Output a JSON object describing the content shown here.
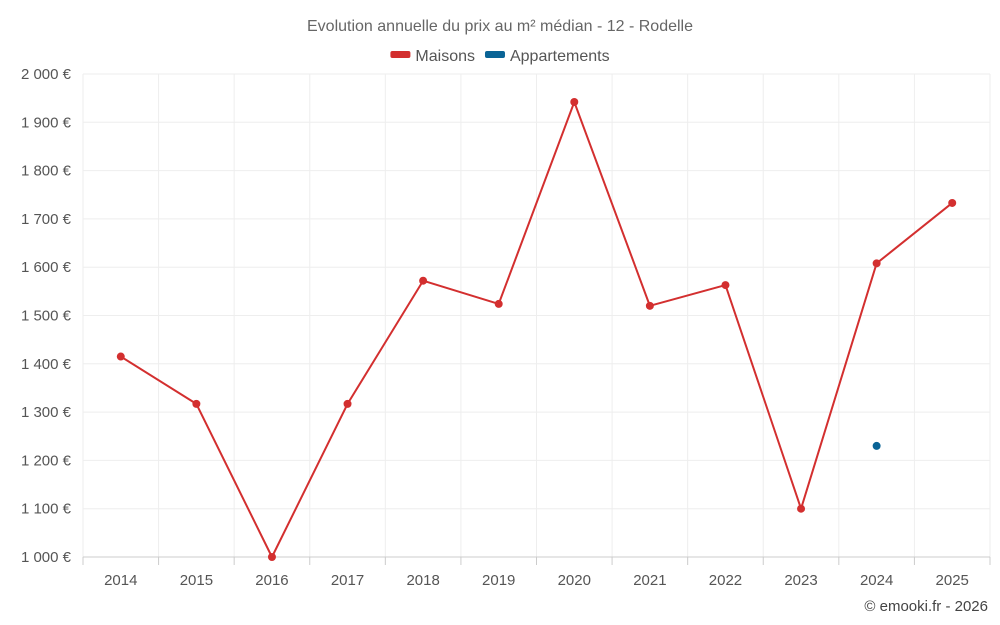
{
  "chart_data": {
    "type": "line",
    "title": "Evolution annuelle du prix au m² médian - 12 - Rodelle",
    "categories": [
      "2014",
      "2015",
      "2016",
      "2017",
      "2018",
      "2019",
      "2020",
      "2021",
      "2022",
      "2023",
      "2024",
      "2025"
    ],
    "series": [
      {
        "name": "Maisons",
        "color": "#d32f2f",
        "values": [
          1415,
          1317,
          1000,
          1317,
          1572,
          1524,
          1942,
          1520,
          1563,
          1100,
          1608,
          1733
        ]
      },
      {
        "name": "Appartements",
        "color": "#0a6496",
        "values": [
          null,
          null,
          null,
          null,
          null,
          null,
          null,
          null,
          null,
          null,
          1230,
          null
        ]
      }
    ],
    "ylim": [
      1000,
      2000
    ],
    "yticks": [
      1000,
      1100,
      1200,
      1300,
      1400,
      1500,
      1600,
      1700,
      1800,
      1900,
      2000
    ],
    "ytick_labels": [
      "1 000 €",
      "1 100 €",
      "1 200 €",
      "1 300 €",
      "1 400 €",
      "1 500 €",
      "1 600 €",
      "1 700 €",
      "1 800 €",
      "1 900 €",
      "2 000 €"
    ],
    "xlabel": "",
    "ylabel": "",
    "grid": true,
    "legend_position": "top-center",
    "credit": "© emooki.fr - 2026"
  }
}
